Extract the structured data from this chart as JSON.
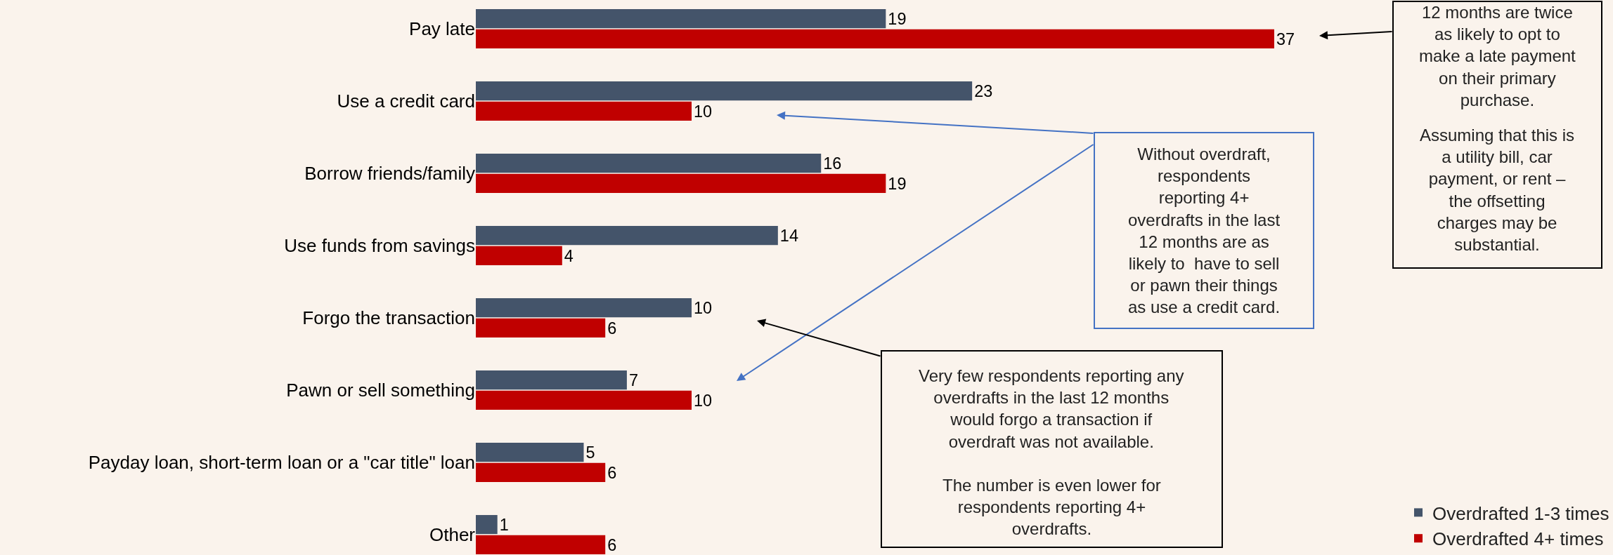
{
  "chart_data": {
    "type": "bar",
    "orientation": "horizontal",
    "categories": [
      "Pay late",
      "Use a credit card",
      "Borrow friends/family",
      "Use funds from savings",
      "Forgo the transaction",
      "Pawn or sell something",
      "Payday loan, short-term loan or a \"car title\" loan",
      "Other"
    ],
    "series": [
      {
        "name": "Overdrafted 1-3 times",
        "color": "#44546a",
        "values": [
          19,
          23,
          16,
          14,
          10,
          7,
          5,
          1
        ]
      },
      {
        "name": "Overdrafted 4+ times",
        "color": "#c00000",
        "values": [
          37,
          10,
          19,
          4,
          6,
          10,
          6,
          6
        ]
      }
    ],
    "xlim": [
      0,
      52.7
    ],
    "data_labels": true,
    "legend": "bottom right",
    "tick_labels": "y",
    "grid": false,
    "annotations": [
      "12 months are twice\nas likely to opt to\nmake a late payment\non their primary\npurchase.",
      "Assuming that this is\na utility bill, car\npayment, or rent –\nthe offsetting\ncharges may be\nsubstantial.",
      "Without overdraft,\nrespondents\nreporting 4+\noverdrafts in the last\n12 months are as\nlikely to  have to sell\nor pawn their things\nas use a credit card.",
      "Very few respondents reporting any\noverdrafts in the last 12 months\nwould forgo a transaction if\noverdraft was not available.",
      "The number is even lower for\nrespondents reporting 4+\noverdrafts."
    ]
  }
}
